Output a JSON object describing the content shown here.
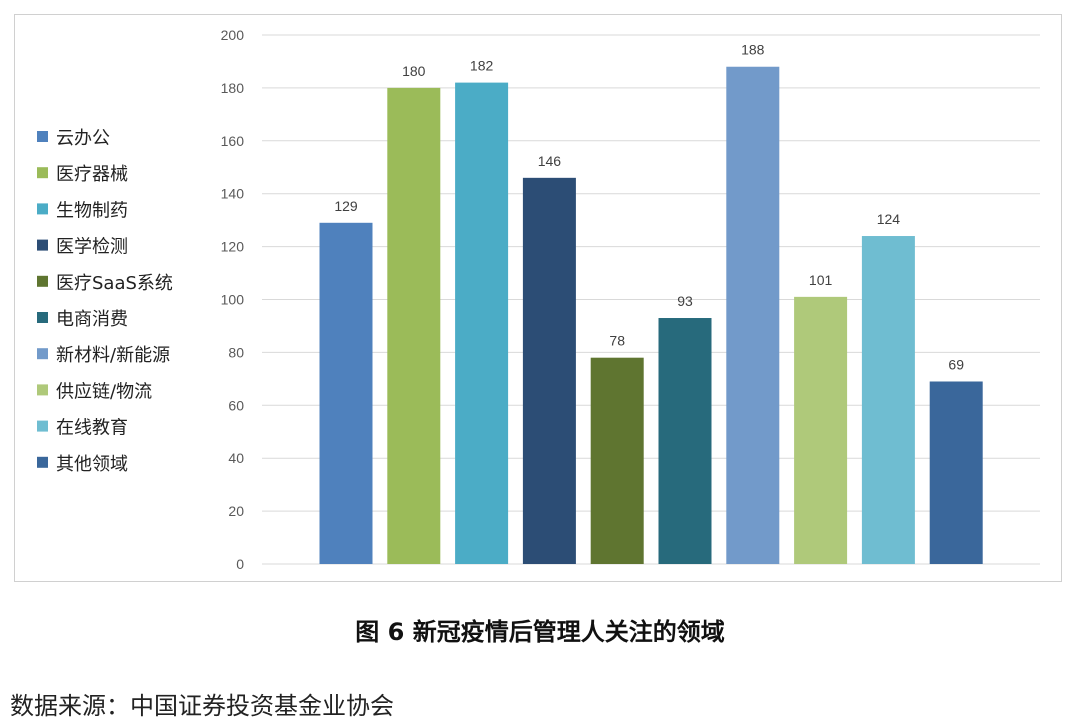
{
  "chart_data": {
    "type": "bar",
    "categories": [
      "云办公",
      "医疗器械",
      "生物制药",
      "医学检测",
      "医疗SaaS系统",
      "电商消费",
      "新材料/新能源",
      "供应链/物流",
      "在线教育",
      "其他领域"
    ],
    "values": [
      129,
      180,
      182,
      146,
      78,
      93,
      188,
      101,
      124,
      69
    ],
    "colors": [
      "#4F81BD",
      "#9BBB59",
      "#4BACC6",
      "#2C4D75",
      "#5F7530",
      "#276A7C",
      "#729ACA",
      "#AFC97A",
      "#6FBDD1",
      "#3A679B"
    ],
    "ylim": [
      0,
      200
    ],
    "yticks": [
      0,
      20,
      40,
      60,
      80,
      100,
      120,
      140,
      160,
      180,
      200
    ],
    "grid": true,
    "legend_position": "left",
    "xlabel": "",
    "ylabel": "",
    "title": ""
  },
  "caption": "图 6 新冠疫情后管理人关注的领域",
  "source": "数据来源：中国证券投资基金业协会"
}
